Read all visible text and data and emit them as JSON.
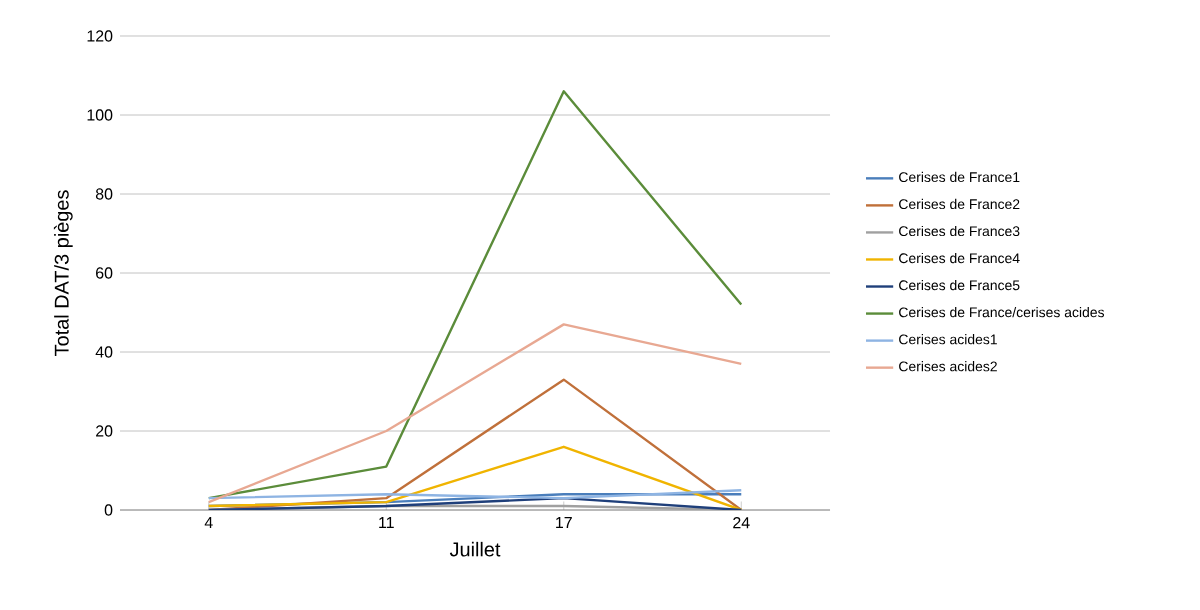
{
  "chart_data": {
    "type": "line",
    "xlabel": "Juillet",
    "ylabel": "Total DAT/3 pièges",
    "categories": [
      "4",
      "11",
      "17",
      "24"
    ],
    "series": [
      {
        "name": "Cerises de France1",
        "color": "#4a7ebb",
        "values": [
          1,
          2,
          4,
          4
        ]
      },
      {
        "name": "Cerises de France2",
        "color": "#c0703a",
        "values": [
          0,
          3,
          33,
          0
        ]
      },
      {
        "name": "Cerises de France3",
        "color": "#a0a0a0",
        "values": [
          0,
          1,
          1,
          0
        ]
      },
      {
        "name": "Cerises de France4",
        "color": "#f0b400",
        "values": [
          1,
          2,
          16,
          0
        ]
      },
      {
        "name": "Cerises de France5",
        "color": "#1f3f7a",
        "values": [
          0,
          1,
          3,
          0
        ]
      },
      {
        "name": "Cerises de France/cerises acides",
        "color": "#5b8c3a",
        "values": [
          3,
          11,
          106,
          52
        ]
      },
      {
        "name": "Cerises acides1",
        "color": "#8eb4e3",
        "values": [
          3,
          4,
          3,
          5
        ]
      },
      {
        "name": "Cerises acides2",
        "color": "#e8a892",
        "values": [
          2,
          20,
          47,
          37
        ]
      }
    ],
    "ylim": [
      0,
      120
    ],
    "yticks": [
      0,
      20,
      40,
      60,
      80,
      100,
      120
    ],
    "grid": "y",
    "legend": "right"
  }
}
